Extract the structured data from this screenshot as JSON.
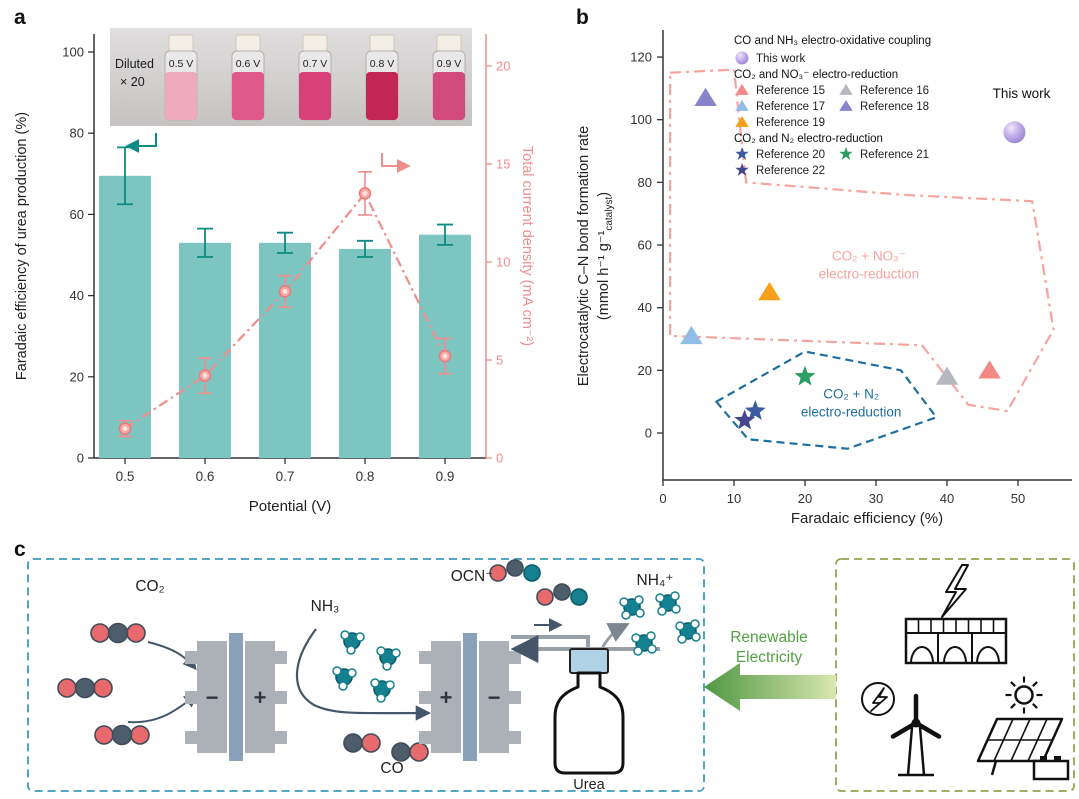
{
  "panels": {
    "a": "a",
    "b": "b",
    "c": "c"
  },
  "chart_data": [
    {
      "type": "bar",
      "panel": "a",
      "categories": [
        "0.5",
        "0.6",
        "0.7",
        "0.8",
        "0.9"
      ],
      "xlabel": "Potential (V)",
      "left_axis": {
        "label": "Faradaic efficiency of urea production (%)",
        "ticks": [
          0,
          20,
          40,
          60,
          80,
          100
        ],
        "range": [
          0,
          104
        ]
      },
      "right_axis": {
        "label": "Total current density (mA cm⁻²)",
        "ticks": [
          0,
          5,
          10,
          15,
          20
        ],
        "range": [
          0,
          21.6
        ]
      },
      "series": [
        {
          "name": "Faradaic efficiency of urea production (%)",
          "type": "bar",
          "axis": "left",
          "values": [
            69.5,
            53,
            53,
            51.5,
            55
          ],
          "errors": [
            7,
            3.5,
            2.5,
            2,
            2.5
          ],
          "color": "#7cc5c1",
          "error_color": "#0e8a84"
        },
        {
          "name": "Total current density (mA cm⁻²)",
          "type": "line",
          "axis": "right",
          "line_style": "dash-dot",
          "values": [
            1.5,
            4.2,
            8.5,
            13.5,
            5.2
          ],
          "errors": [
            0.4,
            0.9,
            0.8,
            1.1,
            0.9
          ],
          "color": "#ef8e8c"
        }
      ],
      "inset": {
        "caption_line1": "Diluted",
        "caption_line2": "× 20",
        "vials": [
          {
            "label": "0.5 V",
            "color": "#efa9bc"
          },
          {
            "label": "0.6 V",
            "color": "#e0598a"
          },
          {
            "label": "0.7 V",
            "color": "#d84078"
          },
          {
            "label": "0.8 V",
            "color": "#c22655"
          },
          {
            "label": "0.9 V",
            "color": "#d14a7b"
          }
        ]
      }
    },
    {
      "type": "scatter",
      "panel": "b",
      "xlabel": "Faradaic efficiency (%)",
      "ylabel_line1": "Electrocatalytic C–N bond formation rate",
      "ylabel_units_main": "(mmol h⁻¹ g⁻¹",
      "ylabel_units_sub": "catalyst",
      "ylabel_units_end": ")",
      "x_ticks": [
        0,
        10,
        20,
        30,
        40,
        50
      ],
      "y_ticks": [
        0,
        20,
        40,
        60,
        80,
        100,
        120
      ],
      "x_range": [
        0,
        57.5
      ],
      "y_range": [
        -15,
        128
      ],
      "legend": {
        "group1_title": "CO and NH₃ electro-oxidative coupling",
        "group1_items": [
          {
            "label": "This work",
            "marker": "sphere",
            "color": "#b3a0e2"
          }
        ],
        "group2_title": "CO₂ and NO₃⁻ electro-reduction",
        "group2_items": [
          {
            "label": "Reference 15",
            "marker": "triangle",
            "color": "#f28884"
          },
          {
            "label": "Reference 16",
            "marker": "triangle",
            "color": "#b5b9be"
          },
          {
            "label": "Reference 17",
            "marker": "triangle",
            "color": "#8fbde6"
          },
          {
            "label": "Reference 18",
            "marker": "triangle",
            "color": "#8884cb"
          },
          {
            "label": "Reference 19",
            "marker": "triangle",
            "color": "#f79e1b"
          }
        ],
        "group3_title": "CO₂ and N₂ electro-reduction",
        "group3_items": [
          {
            "label": "Reference 20",
            "marker": "star",
            "color": "#3c5ba1"
          },
          {
            "label": "Reference 21",
            "marker": "star",
            "color": "#2d9e63"
          },
          {
            "label": "Reference 22",
            "marker": "star",
            "color": "#47478f"
          }
        ]
      },
      "points": [
        {
          "label": "This work",
          "x": 49.5,
          "y": 96,
          "marker": "sphere",
          "color": "#b3a0e2"
        },
        {
          "label": "Reference 15",
          "x": 46,
          "y": 20,
          "marker": "triangle",
          "color": "#f28884"
        },
        {
          "label": "Reference 16",
          "x": 40,
          "y": 18,
          "marker": "triangle",
          "color": "#b5b9be"
        },
        {
          "label": "Reference 17",
          "x": 4,
          "y": 31,
          "marker": "triangle",
          "color": "#8fbde6"
        },
        {
          "label": "Reference 18",
          "x": 6,
          "y": 107,
          "marker": "triangle",
          "color": "#8884cb"
        },
        {
          "label": "Reference 19",
          "x": 15,
          "y": 45,
          "marker": "triangle",
          "color": "#f79e1b"
        },
        {
          "label": "Reference 20",
          "x": 13,
          "y": 7,
          "marker": "star",
          "color": "#3c5ba1"
        },
        {
          "label": "Reference 21",
          "x": 20,
          "y": 18,
          "marker": "star",
          "color": "#2d9e63"
        },
        {
          "label": "Reference 22",
          "x": 11.5,
          "y": 4,
          "marker": "star",
          "color": "#47478f"
        }
      ],
      "annotation": {
        "text": "This work",
        "x": 50.5,
        "y": 107
      },
      "regions": [
        {
          "name": "co2-no3-region",
          "style": "dash-dot",
          "color": "#f5a49e",
          "label_line1": "CO₂ + NO₃⁻",
          "label_line2": "electro-reduction",
          "label_x": 29,
          "label_y": 55,
          "points": [
            [
              1,
              115
            ],
            [
              10,
              116
            ],
            [
              11.7,
              80
            ],
            [
              34,
              76
            ],
            [
              52,
              74
            ],
            [
              55,
              33
            ],
            [
              48.5,
              7
            ],
            [
              43,
              9
            ],
            [
              36.5,
              28
            ],
            [
              13,
              30
            ],
            [
              1,
              31
            ]
          ]
        },
        {
          "name": "co2-n2-region",
          "style": "dashed",
          "color": "#1e6f9f",
          "label_line1": "CO₂ + N₂",
          "label_line2": "electro-reduction",
          "label_x": 26.5,
          "label_y": 11,
          "points": [
            [
              7.5,
              10
            ],
            [
              20,
              26
            ],
            [
              33.5,
              20
            ],
            [
              38.5,
              5
            ],
            [
              26,
              -5
            ],
            [
              12,
              -2
            ]
          ]
        }
      ]
    }
  ],
  "panel_c": {
    "labels": {
      "co2": "CO₂",
      "nh3": "NH₃",
      "co": "CO",
      "ocn": "OCN⁻",
      "nh4": "NH₄⁺",
      "urea": "Urea"
    },
    "electrolyzer1": {
      "left_sign": "−",
      "right_sign": "+"
    },
    "electrolyzer2": {
      "left_sign": "+",
      "right_sign": "−"
    },
    "arrow_label_line1": "Renewable",
    "arrow_label_line2": "Electricity"
  }
}
